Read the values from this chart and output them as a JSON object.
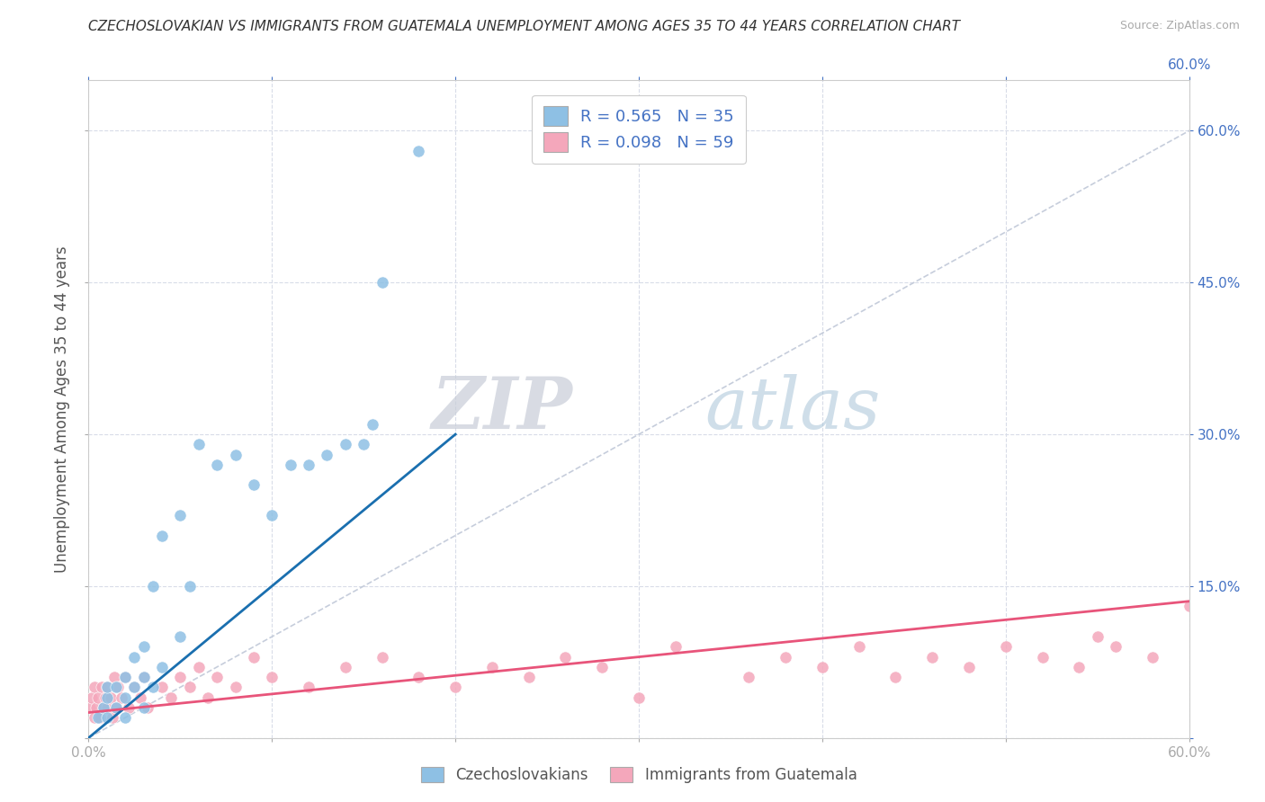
{
  "title": "CZECHOSLOVAKIAN VS IMMIGRANTS FROM GUATEMALA UNEMPLOYMENT AMONG AGES 35 TO 44 YEARS CORRELATION CHART",
  "source": "Source: ZipAtlas.com",
  "ylabel": "Unemployment Among Ages 35 to 44 years",
  "xmin": 0.0,
  "xmax": 0.6,
  "ymin": 0.0,
  "ymax": 0.65,
  "color_czech": "#8ec0e4",
  "color_guatemala": "#f4a7bb",
  "color_czech_line": "#1a6faf",
  "color_guatemala_line": "#e8547a",
  "color_diagonal": "#c0c8d8",
  "watermark_zip": "ZIP",
  "watermark_atlas": "atlas",
  "czech_x": [
    0.005,
    0.008,
    0.01,
    0.01,
    0.01,
    0.015,
    0.015,
    0.02,
    0.02,
    0.02,
    0.025,
    0.025,
    0.03,
    0.03,
    0.03,
    0.035,
    0.035,
    0.04,
    0.04,
    0.05,
    0.05,
    0.055,
    0.06,
    0.07,
    0.08,
    0.09,
    0.1,
    0.11,
    0.12,
    0.13,
    0.14,
    0.15,
    0.155,
    0.16,
    0.18
  ],
  "czech_y": [
    0.02,
    0.03,
    0.02,
    0.04,
    0.05,
    0.03,
    0.05,
    0.02,
    0.04,
    0.06,
    0.05,
    0.08,
    0.03,
    0.06,
    0.09,
    0.05,
    0.15,
    0.07,
    0.2,
    0.1,
    0.22,
    0.15,
    0.29,
    0.27,
    0.28,
    0.25,
    0.22,
    0.27,
    0.27,
    0.28,
    0.29,
    0.29,
    0.31,
    0.45,
    0.58
  ],
  "guatemala_x": [
    0.001,
    0.002,
    0.003,
    0.003,
    0.004,
    0.005,
    0.006,
    0.007,
    0.008,
    0.009,
    0.01,
    0.01,
    0.012,
    0.013,
    0.014,
    0.015,
    0.016,
    0.018,
    0.02,
    0.022,
    0.025,
    0.028,
    0.03,
    0.032,
    0.04,
    0.045,
    0.05,
    0.055,
    0.06,
    0.065,
    0.07,
    0.08,
    0.09,
    0.1,
    0.12,
    0.14,
    0.16,
    0.18,
    0.2,
    0.22,
    0.24,
    0.26,
    0.28,
    0.3,
    0.32,
    0.36,
    0.38,
    0.4,
    0.42,
    0.44,
    0.46,
    0.48,
    0.5,
    0.52,
    0.54,
    0.56,
    0.58,
    0.6,
    0.55
  ],
  "guatemala_y": [
    0.03,
    0.04,
    0.02,
    0.05,
    0.03,
    0.04,
    0.02,
    0.05,
    0.03,
    0.04,
    0.05,
    0.03,
    0.04,
    0.02,
    0.06,
    0.03,
    0.05,
    0.04,
    0.06,
    0.03,
    0.05,
    0.04,
    0.06,
    0.03,
    0.05,
    0.04,
    0.06,
    0.05,
    0.07,
    0.04,
    0.06,
    0.05,
    0.08,
    0.06,
    0.05,
    0.07,
    0.08,
    0.06,
    0.05,
    0.07,
    0.06,
    0.08,
    0.07,
    0.04,
    0.09,
    0.06,
    0.08,
    0.07,
    0.09,
    0.06,
    0.08,
    0.07,
    0.09,
    0.08,
    0.07,
    0.09,
    0.08,
    0.13,
    0.1
  ],
  "czech_line_x": [
    0.0,
    0.2
  ],
  "czech_line_y": [
    0.0,
    0.3
  ],
  "guatemala_line_x": [
    0.0,
    0.6
  ],
  "guatemala_line_y": [
    0.025,
    0.135
  ]
}
